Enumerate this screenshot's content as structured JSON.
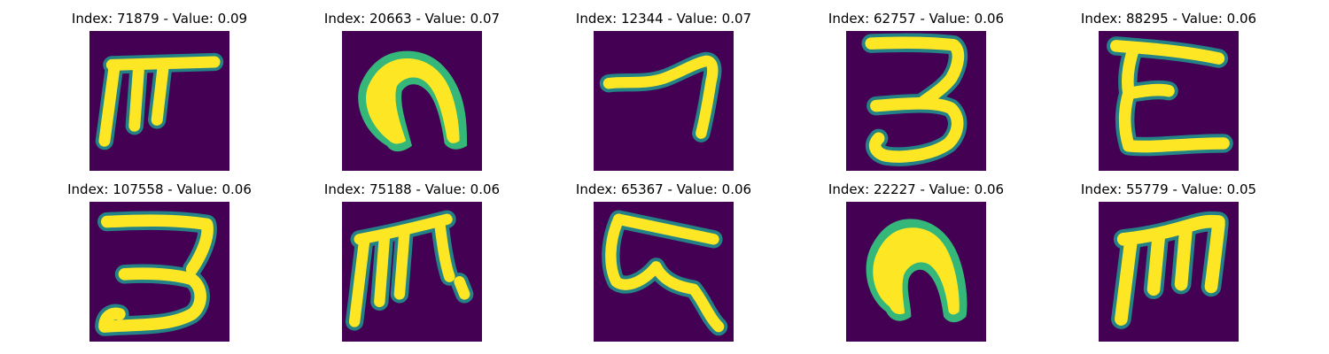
{
  "colors": {
    "background": "#440154",
    "stroke_core": "#fde725",
    "stroke_edge": "#35b779",
    "stroke_halo": "#21918c"
  },
  "tiles": [
    {
      "title": "Index: 71879 - Value: 0.09",
      "glyph_icon": "handwritten-glyph-71879-icon"
    },
    {
      "title": "Index: 20663 - Value: 0.07",
      "glyph_icon": "handwritten-glyph-20663-icon"
    },
    {
      "title": "Index: 12344 - Value: 0.07",
      "glyph_icon": "handwritten-glyph-12344-icon"
    },
    {
      "title": "Index: 62757 - Value: 0.06",
      "glyph_icon": "handwritten-glyph-62757-icon"
    },
    {
      "title": "Index: 88295 - Value: 0.06",
      "glyph_icon": "handwritten-glyph-88295-icon"
    },
    {
      "title": "Index: 107558 - Value: 0.06",
      "glyph_icon": "handwritten-glyph-107558-icon"
    },
    {
      "title": "Index: 75188 - Value: 0.06",
      "glyph_icon": "handwritten-glyph-75188-icon"
    },
    {
      "title": "Index: 65367 - Value: 0.06",
      "glyph_icon": "handwritten-glyph-65367-icon"
    },
    {
      "title": "Index: 22227 - Value: 0.06",
      "glyph_icon": "handwritten-glyph-22227-icon"
    },
    {
      "title": "Index: 55779 - Value: 0.05",
      "glyph_icon": "handwritten-glyph-55779-icon"
    }
  ]
}
